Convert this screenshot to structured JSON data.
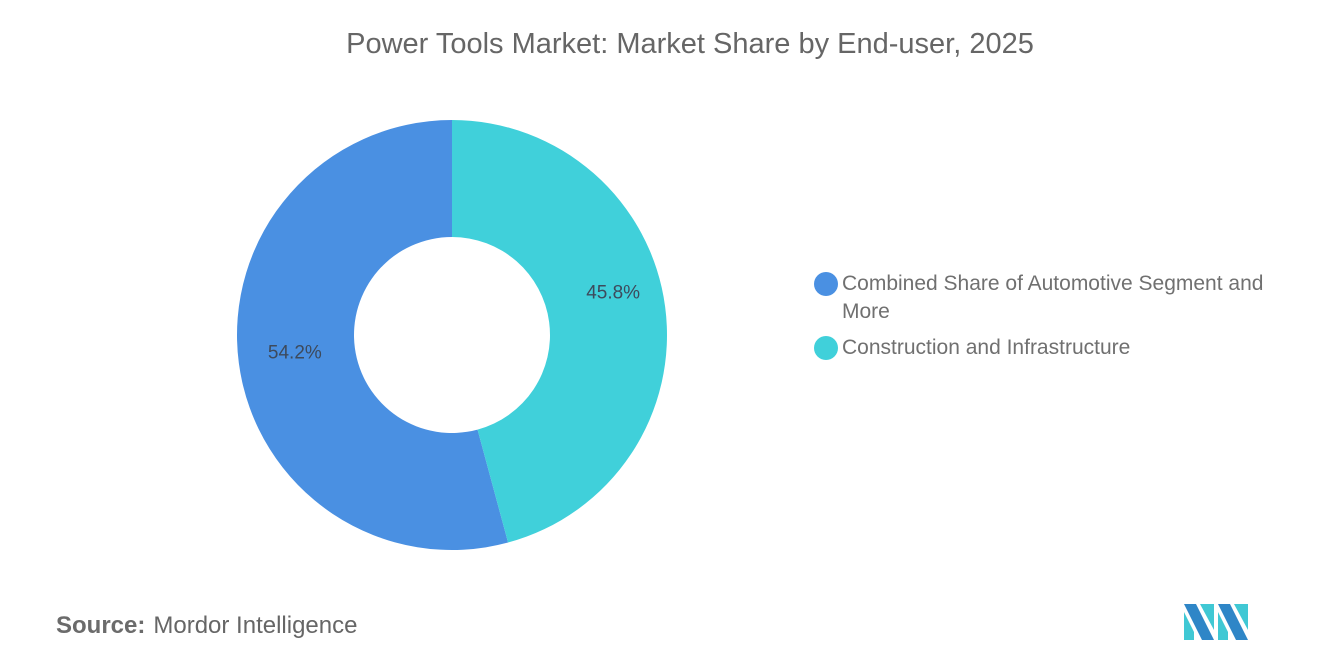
{
  "header": {
    "title": "Power Tools Market: Market Share by End-user, 2025"
  },
  "chart_data": {
    "type": "pie",
    "subtype": "donut",
    "title": "Power Tools Market: Market Share by End-user, 2025",
    "categories": [
      "Combined Share of Automotive Segment and More",
      "Construction and Infrastructure"
    ],
    "values": [
      54.2,
      45.8
    ],
    "unit": "%",
    "colors": [
      "#4a90e2",
      "#40d0da"
    ],
    "data_labels": [
      "54.2%",
      "45.8%"
    ],
    "legend_position": "right"
  },
  "legend": {
    "items": [
      {
        "label": "Combined Share of Automotive Segment and More",
        "color": "#4a90e2"
      },
      {
        "label": "Construction and Infrastructure",
        "color": "#40d0da"
      }
    ]
  },
  "footer": {
    "source_label": "Source:",
    "source_value": "Mordor Intelligence",
    "logo": "mordor-intelligence-logo"
  }
}
